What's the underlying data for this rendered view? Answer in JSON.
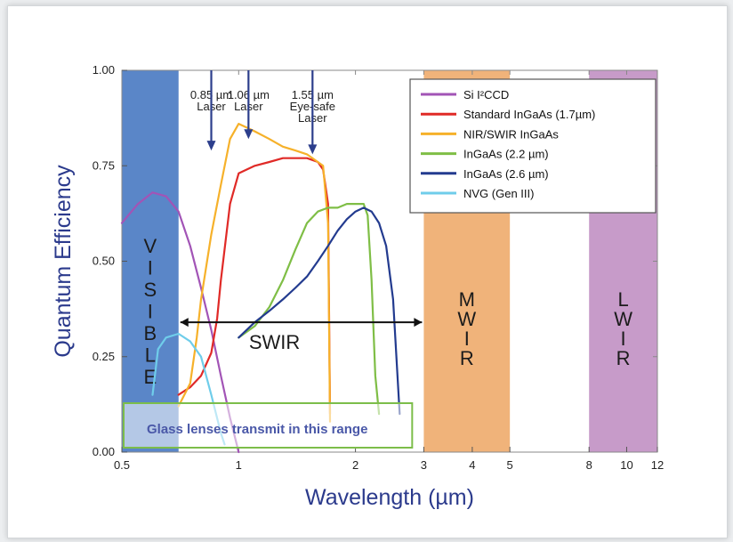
{
  "chart_data": {
    "type": "line",
    "xlabel": "Wavelength (µm)",
    "ylabel": "Quantum Efficiency",
    "x_scale": "log",
    "xlim": [
      0.5,
      12
    ],
    "ylim": [
      0.0,
      1.0
    ],
    "x_ticks": [
      0.5,
      1,
      2,
      3,
      4,
      5,
      8,
      10,
      12
    ],
    "x_tick_labels": [
      "0.5",
      "1",
      "2",
      "3",
      "4",
      "5",
      "8",
      "10",
      "12"
    ],
    "y_ticks": [
      0.0,
      0.25,
      0.5,
      0.75,
      1.0
    ],
    "y_tick_labels": [
      "0.00",
      "0.25",
      "0.50",
      "0.75",
      "1.00"
    ],
    "legend_position": "top-right",
    "series": [
      {
        "name": "Si I²CCD",
        "color": "#a254b6",
        "x": [
          0.5,
          0.55,
          0.6,
          0.65,
          0.7,
          0.75,
          0.8,
          0.85,
          0.9,
          0.95,
          1.0
        ],
        "y": [
          0.6,
          0.65,
          0.68,
          0.67,
          0.63,
          0.54,
          0.43,
          0.32,
          0.2,
          0.09,
          0.0
        ]
      },
      {
        "name": "Standard InGaAs (1.7µm)",
        "color": "#e02a27",
        "x": [
          0.7,
          0.75,
          0.8,
          0.85,
          0.88,
          0.9,
          0.95,
          1.0,
          1.1,
          1.2,
          1.3,
          1.4,
          1.5,
          1.6,
          1.65,
          1.7,
          1.72
        ],
        "y": [
          0.15,
          0.17,
          0.2,
          0.26,
          0.35,
          0.45,
          0.65,
          0.73,
          0.75,
          0.76,
          0.77,
          0.77,
          0.77,
          0.76,
          0.74,
          0.65,
          0.1
        ]
      },
      {
        "name": "NIR/SWIR InGaAs",
        "color": "#f6b12a",
        "x": [
          0.7,
          0.75,
          0.78,
          0.8,
          0.85,
          0.9,
          0.95,
          1.0,
          1.05,
          1.1,
          1.2,
          1.3,
          1.4,
          1.5,
          1.6,
          1.65,
          1.7,
          1.72
        ],
        "y": [
          0.12,
          0.18,
          0.3,
          0.4,
          0.57,
          0.7,
          0.82,
          0.86,
          0.85,
          0.84,
          0.82,
          0.8,
          0.79,
          0.78,
          0.76,
          0.75,
          0.6,
          0.08
        ]
      },
      {
        "name": "InGaAs (2.2 µm)",
        "color": "#7fbe46",
        "x": [
          1.0,
          1.1,
          1.2,
          1.3,
          1.4,
          1.5,
          1.6,
          1.7,
          1.8,
          1.9,
          2.0,
          2.1,
          2.15,
          2.2,
          2.25,
          2.3
        ],
        "y": [
          0.3,
          0.33,
          0.38,
          0.45,
          0.53,
          0.6,
          0.63,
          0.64,
          0.64,
          0.65,
          0.65,
          0.65,
          0.62,
          0.45,
          0.2,
          0.1
        ]
      },
      {
        "name": "InGaAs (2.6 µm)",
        "color": "#233b8f",
        "x": [
          1.0,
          1.1,
          1.2,
          1.3,
          1.4,
          1.5,
          1.6,
          1.7,
          1.8,
          1.9,
          2.0,
          2.1,
          2.2,
          2.3,
          2.4,
          2.5,
          2.55,
          2.6
        ],
        "y": [
          0.3,
          0.34,
          0.37,
          0.4,
          0.43,
          0.46,
          0.5,
          0.54,
          0.58,
          0.61,
          0.63,
          0.64,
          0.63,
          0.6,
          0.54,
          0.4,
          0.25,
          0.1
        ]
      },
      {
        "name": "NVG (Gen III)",
        "color": "#6fcdea",
        "x": [
          0.6,
          0.62,
          0.65,
          0.7,
          0.75,
          0.8,
          0.85,
          0.9,
          0.92
        ],
        "y": [
          0.15,
          0.27,
          0.3,
          0.31,
          0.29,
          0.25,
          0.15,
          0.05,
          0.02
        ]
      }
    ],
    "bands": [
      {
        "label": "VISIBLE",
        "from": 0.5,
        "to": 0.7,
        "color": "#5a86c8"
      },
      {
        "label": "MWIR",
        "from": 3.0,
        "to": 5.0,
        "color": "#f0b37a"
      },
      {
        "label": "LWIR",
        "from": 8.0,
        "to": 12.0,
        "color": "#c79bc9"
      }
    ],
    "band_letters": {
      "VISIBLE": [
        "V",
        "I",
        "S",
        "I",
        "B",
        "L",
        "E"
      ],
      "MWIR": [
        "M",
        "W",
        "I",
        "R"
      ],
      "LWIR": [
        "L",
        "W",
        "I",
        "R"
      ]
    },
    "swir": {
      "label": "SWIR",
      "from": 0.7,
      "to": 3.0,
      "y": 0.34
    },
    "glass_note": {
      "text": "Glass lenses transmit in this range",
      "from": 0.5,
      "to": 2.8
    },
    "lasers": [
      {
        "wavelength": 0.85,
        "text": "0.85 µm\nLaser",
        "arrow_to": 0.79
      },
      {
        "wavelength": 1.06,
        "text": "1.06 µm\nLaser",
        "arrow_to": 0.82
      },
      {
        "wavelength": 1.55,
        "text": "1.55 µm\nEye-safe\nLaser",
        "arrow_to": 0.78
      }
    ],
    "series_colors_accent": "#2c3e8c"
  }
}
